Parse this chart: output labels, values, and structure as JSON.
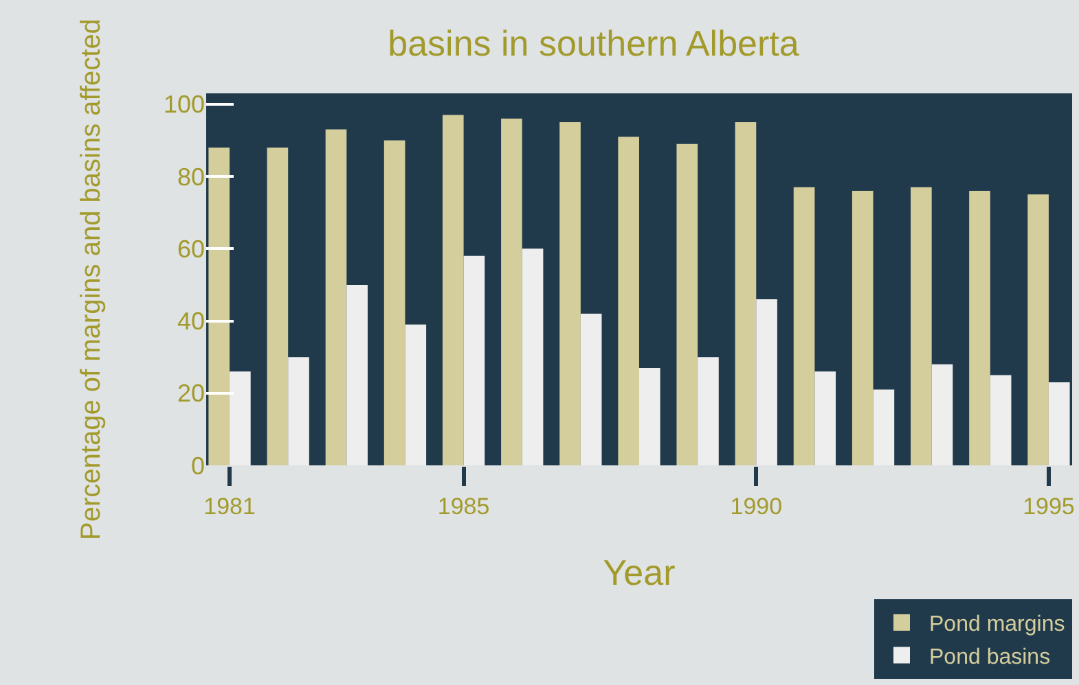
{
  "chart_data": {
    "type": "bar",
    "title": "basins in southern Alberta",
    "xlabel": "Year",
    "ylabel": "Percentage of margins and basins affected",
    "x": [
      1981,
      1982,
      1983,
      1984,
      1985,
      1986,
      1987,
      1988,
      1989,
      1990,
      1991,
      1992,
      1993,
      1994,
      1995
    ],
    "series": [
      {
        "name": "Pond margins",
        "color": "#d4cd9c",
        "values": [
          88,
          88,
          93,
          90,
          97,
          96,
          95,
          91,
          89,
          95,
          77,
          76,
          77,
          76,
          75
        ]
      },
      {
        "name": "Pond basins",
        "color": "#eeeeee",
        "values": [
          26,
          30,
          50,
          39,
          58,
          60,
          42,
          27,
          30,
          46,
          26,
          21,
          28,
          25,
          23
        ]
      }
    ],
    "xlim": [
      1980.6,
      1995.4
    ],
    "xticks": [
      1981,
      1985,
      1990,
      1995
    ],
    "ylim": [
      0,
      103
    ],
    "yticks": [
      0,
      20,
      40,
      60,
      80,
      100
    ],
    "legend": "bottom right"
  }
}
